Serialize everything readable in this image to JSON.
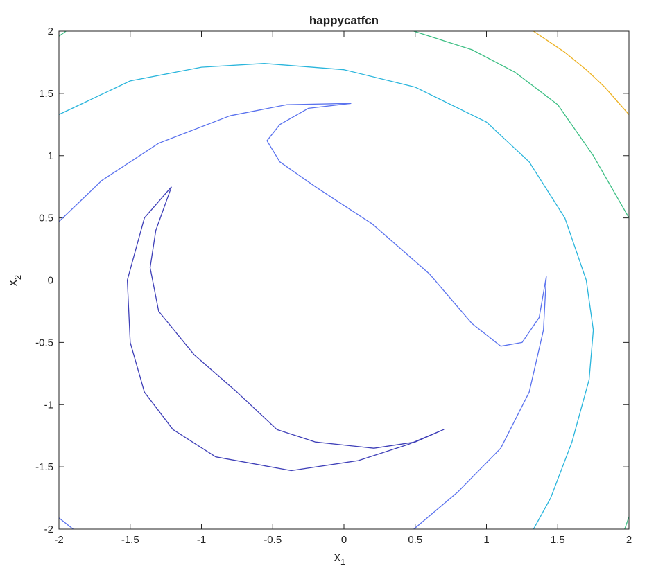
{
  "chart_data": {
    "type": "contour",
    "title": "happycatfcn",
    "xlabel": "x",
    "xlabel_sub": "1",
    "ylabel": "x",
    "ylabel_sub": "2",
    "xlim": [
      -2,
      2
    ],
    "ylim": [
      -2,
      2
    ],
    "xticks": [
      -2,
      -1.5,
      -1,
      -0.5,
      0,
      0.5,
      1,
      1.5,
      2
    ],
    "yticks": [
      -2,
      -1.5,
      -1,
      -0.5,
      0,
      0.5,
      1,
      1.5,
      2
    ],
    "grid": false,
    "series": [
      {
        "color": "#edb120",
        "x": [
          1.33,
          1.55,
          1.7,
          1.83,
          2.0
        ],
        "y": [
          2.0,
          1.83,
          1.69,
          1.55,
          1.33
        ]
      },
      {
        "color": "#3dbf84",
        "x": [
          0.49,
          0.9,
          1.2,
          1.5,
          1.75,
          1.9,
          2.0
        ],
        "y": [
          2.0,
          1.85,
          1.67,
          1.41,
          1.0,
          0.7,
          0.5
        ]
      },
      {
        "color": "#3dbf84",
        "x": [
          -2.0,
          -1.95
        ],
        "y": [
          1.96,
          2.0
        ]
      },
      {
        "color": "#3dbf84",
        "x": [
          2.0,
          1.97
        ],
        "y": [
          -1.9,
          -2.0
        ]
      },
      {
        "color": "#29b5dc",
        "x": [
          -2.0,
          -1.5,
          -1.0,
          -0.56,
          0.0,
          0.5,
          1.0,
          1.3,
          1.55,
          1.7,
          1.75,
          1.72,
          1.6,
          1.45,
          1.33
        ],
        "y": [
          1.33,
          1.6,
          1.71,
          1.74,
          1.69,
          1.55,
          1.27,
          0.95,
          0.5,
          0.0,
          -0.4,
          -0.8,
          -1.3,
          -1.75,
          -2.0
        ]
      },
      {
        "color": "#5a72ee",
        "x": [
          -2.0,
          -1.7,
          -1.3,
          -0.8,
          -0.4,
          0.05
        ],
        "y": [
          0.47,
          0.8,
          1.1,
          1.32,
          1.41,
          1.42
        ]
      },
      {
        "color": "#5a72ee",
        "x": [
          0.05,
          -0.25,
          -0.45,
          -0.54,
          -0.45,
          -0.2,
          0.2,
          0.6,
          0.9,
          1.1,
          1.25,
          1.37,
          1.42
        ],
        "y": [
          1.42,
          1.38,
          1.25,
          1.12,
          0.95,
          0.75,
          0.45,
          0.05,
          -0.35,
          -0.53,
          -0.5,
          -0.3,
          0.03
        ]
      },
      {
        "color": "#5a72ee",
        "x": [
          1.42,
          1.4,
          1.3,
          1.1,
          0.8,
          0.49
        ],
        "y": [
          0.03,
          -0.4,
          -0.9,
          -1.35,
          -1.7,
          -2.0
        ]
      },
      {
        "color": "#5a72ee",
        "x": [
          -2.0,
          -1.9
        ],
        "y": [
          -1.91,
          -2.0
        ]
      },
      {
        "color": "#3e3fb8",
        "x": [
          -1.21,
          -1.4,
          -1.52,
          -1.5,
          -1.4,
          -1.2,
          -0.9,
          -0.37,
          0.1,
          0.45,
          0.7,
          0.5,
          0.21,
          -0.2,
          -0.47,
          -0.75,
          -1.05,
          -1.3,
          -1.36,
          -1.32,
          -1.21
        ],
        "y": [
          0.75,
          0.5,
          0.0,
          -0.5,
          -0.9,
          -1.2,
          -1.42,
          -1.53,
          -1.45,
          -1.32,
          -1.2,
          -1.3,
          -1.35,
          -1.3,
          -1.2,
          -0.9,
          -0.6,
          -0.25,
          0.1,
          0.4,
          0.75
        ]
      }
    ]
  }
}
